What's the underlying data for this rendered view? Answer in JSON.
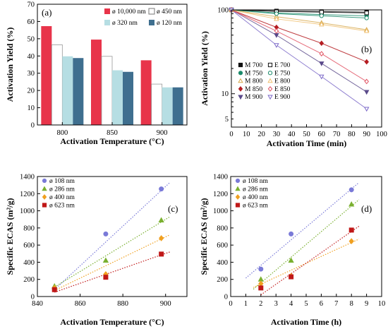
{
  "chart_data": [
    {
      "panel": "(a)",
      "type": "bar",
      "categories": [
        "800",
        "850",
        "900"
      ],
      "series": [
        {
          "name": "ø 10,000 nm",
          "color": "#e8344a",
          "values": [
            57.3,
            49.5,
            37.5
          ]
        },
        {
          "name": "ø 450 nm",
          "color": "#ffffff",
          "values": [
            46.5,
            39.8,
            23.7
          ]
        },
        {
          "name": "ø 320 nm",
          "color": "#b6dee3",
          "values": [
            39.8,
            31.7,
            21.8
          ]
        },
        {
          "name": "ø 120 nm",
          "color": "#3f6f8f",
          "values": [
            38.8,
            30.8,
            21.8
          ]
        }
      ],
      "ylim": [
        0,
        70
      ],
      "yticks": [
        "0",
        "10",
        "20",
        "30",
        "40",
        "50",
        "60",
        "70"
      ],
      "xlabel": "Activation Temperature (°C)",
      "ylabel": "Activation Yield (%)"
    },
    {
      "panel": "(b)",
      "type": "line",
      "y_scale": "log",
      "xlim": [
        0,
        100
      ],
      "ylim": [
        4,
        100
      ],
      "xticks": [
        "0",
        "10",
        "20",
        "30",
        "40",
        "50",
        "60",
        "70",
        "80",
        "90",
        "100"
      ],
      "yticks": [
        "5",
        "10",
        "100"
      ],
      "xlabel": "Activation Time (min)",
      "ylabel": "Activation Yield (%)",
      "series": [
        {
          "name": "M 700",
          "marker": "square",
          "filled": true,
          "color": "#111111",
          "x": [
            0,
            30,
            60,
            90
          ],
          "y": [
            100,
            97,
            95.5,
            94
          ]
        },
        {
          "name": "M 750",
          "marker": "circle",
          "filled": true,
          "color": "#1a8a6a",
          "x": [
            0,
            30,
            60,
            90
          ],
          "y": [
            100,
            92,
            88,
            85
          ]
        },
        {
          "name": "M 800",
          "marker": "triangle",
          "filled": false,
          "color": "#d6a84c",
          "x": [
            0,
            30,
            60,
            90
          ],
          "y": [
            100,
            83,
            70,
            58
          ]
        },
        {
          "name": "M 850",
          "marker": "diamond",
          "filled": true,
          "color": "#b51d22",
          "x": [
            0,
            30,
            60,
            90
          ],
          "y": [
            100,
            62,
            40,
            24
          ]
        },
        {
          "name": "M 900",
          "marker": "triangle-down",
          "filled": true,
          "color": "#5a4a8a",
          "x": [
            0,
            30,
            60,
            90
          ],
          "y": [
            100,
            50,
            23,
            10.5
          ]
        },
        {
          "name": "E 700",
          "marker": "square",
          "filled": false,
          "color": "#111111",
          "x": [
            0,
            30,
            60,
            90
          ],
          "y": [
            100,
            96,
            94,
            92
          ]
        },
        {
          "name": "E 750",
          "marker": "circle",
          "filled": false,
          "color": "#1a8a6a",
          "x": [
            0,
            30,
            60,
            90
          ],
          "y": [
            100,
            90,
            85,
            80
          ]
        },
        {
          "name": "E 800",
          "marker": "triangle",
          "filled": false,
          "color": "#f0c070",
          "x": [
            0,
            30,
            60,
            90
          ],
          "y": [
            100,
            78,
            67,
            56
          ]
        },
        {
          "name": "E 850",
          "marker": "diamond",
          "filled": false,
          "color": "#e05060",
          "x": [
            0,
            30,
            60,
            90
          ],
          "y": [
            100,
            56,
            30,
            14
          ]
        },
        {
          "name": "E 900",
          "marker": "triangle-down",
          "filled": false,
          "color": "#7b68c8",
          "x": [
            0,
            30,
            60,
            90
          ],
          "y": [
            100,
            38,
            16,
            6.6
          ]
        }
      ],
      "legend": "bottom-left"
    },
    {
      "panel": "(c)",
      "type": "scatter",
      "xlim": [
        840,
        910
      ],
      "ylim": [
        0,
        1400
      ],
      "xticks": [
        "840",
        "860",
        "880",
        "900"
      ],
      "yticks": [
        "0",
        "200",
        "400",
        "600",
        "800",
        "1000",
        "1200",
        "1400"
      ],
      "xlabel": "Activation Temperature (°C)",
      "ylabel": "Specific ECAS (m²/g)",
      "series": [
        {
          "name": "ø 108 nm",
          "marker": "circle",
          "color": "#7a7ad8",
          "x": [
            848,
            872,
            898
          ],
          "y": [
            80,
            730,
            1255
          ],
          "fit": [
            [
              848,
              80
            ],
            [
              902,
              1330
            ]
          ]
        },
        {
          "name": "ø 286 nm",
          "marker": "triangle",
          "color": "#7ab030",
          "x": [
            848,
            872,
            898
          ],
          "y": [
            120,
            420,
            890
          ],
          "fit": [
            [
              848,
              110
            ],
            [
              902,
              930
            ]
          ]
        },
        {
          "name": "ø 400 nm",
          "marker": "diamond",
          "color": "#f0a020",
          "x": [
            848,
            872,
            898
          ],
          "y": [
            100,
            260,
            680
          ],
          "fit": [
            [
              848,
              70
            ],
            [
              902,
              720
            ]
          ]
        },
        {
          "name": "ø 623 nm",
          "marker": "square",
          "color": "#c01818",
          "x": [
            848,
            872,
            898
          ],
          "y": [
            80,
            225,
            495
          ],
          "fit": [
            [
              848,
              50
            ],
            [
              902,
              520
            ]
          ]
        }
      ],
      "legend": "top-left"
    },
    {
      "panel": "(d)",
      "type": "scatter",
      "xlim": [
        0,
        10
      ],
      "ylim": [
        0,
        1400
      ],
      "xticks": [
        "0",
        "1",
        "2",
        "3",
        "4",
        "5",
        "6",
        "7",
        "8",
        "9",
        "10"
      ],
      "yticks": [
        "0",
        "200",
        "400",
        "600",
        "800",
        "1000",
        "1200",
        "1400"
      ],
      "xlabel": "Activation Time (h)",
      "ylabel": "Specific ECAS (m²/g)",
      "series": [
        {
          "name": "ø 108 nm",
          "marker": "circle",
          "color": "#7a7ad8",
          "x": [
            2,
            4,
            8
          ],
          "y": [
            320,
            730,
            1245
          ],
          "fit": [
            [
              1,
              215
            ],
            [
              8.5,
              1330
            ]
          ]
        },
        {
          "name": "ø 286 nm",
          "marker": "triangle",
          "color": "#7ab030",
          "x": [
            2,
            4,
            8
          ],
          "y": [
            200,
            420,
            1075
          ],
          "fit": [
            [
              1.5,
              85
            ],
            [
              8.5,
              1130
            ]
          ]
        },
        {
          "name": "ø 400 nm",
          "marker": "diamond",
          "color": "#f0a020",
          "x": [
            2,
            4,
            8
          ],
          "y": [
            150,
            240,
            645
          ],
          "fit": [
            [
              1.5,
              105
            ],
            [
              8.5,
              670
            ]
          ]
        },
        {
          "name": "ø 623 nm",
          "marker": "square",
          "color": "#c01818",
          "x": [
            2,
            4,
            8
          ],
          "y": [
            100,
            230,
            775
          ],
          "fit": [
            [
              2,
              20
            ],
            [
              8.5,
              820
            ]
          ]
        }
      ],
      "legend": "top-left"
    }
  ]
}
